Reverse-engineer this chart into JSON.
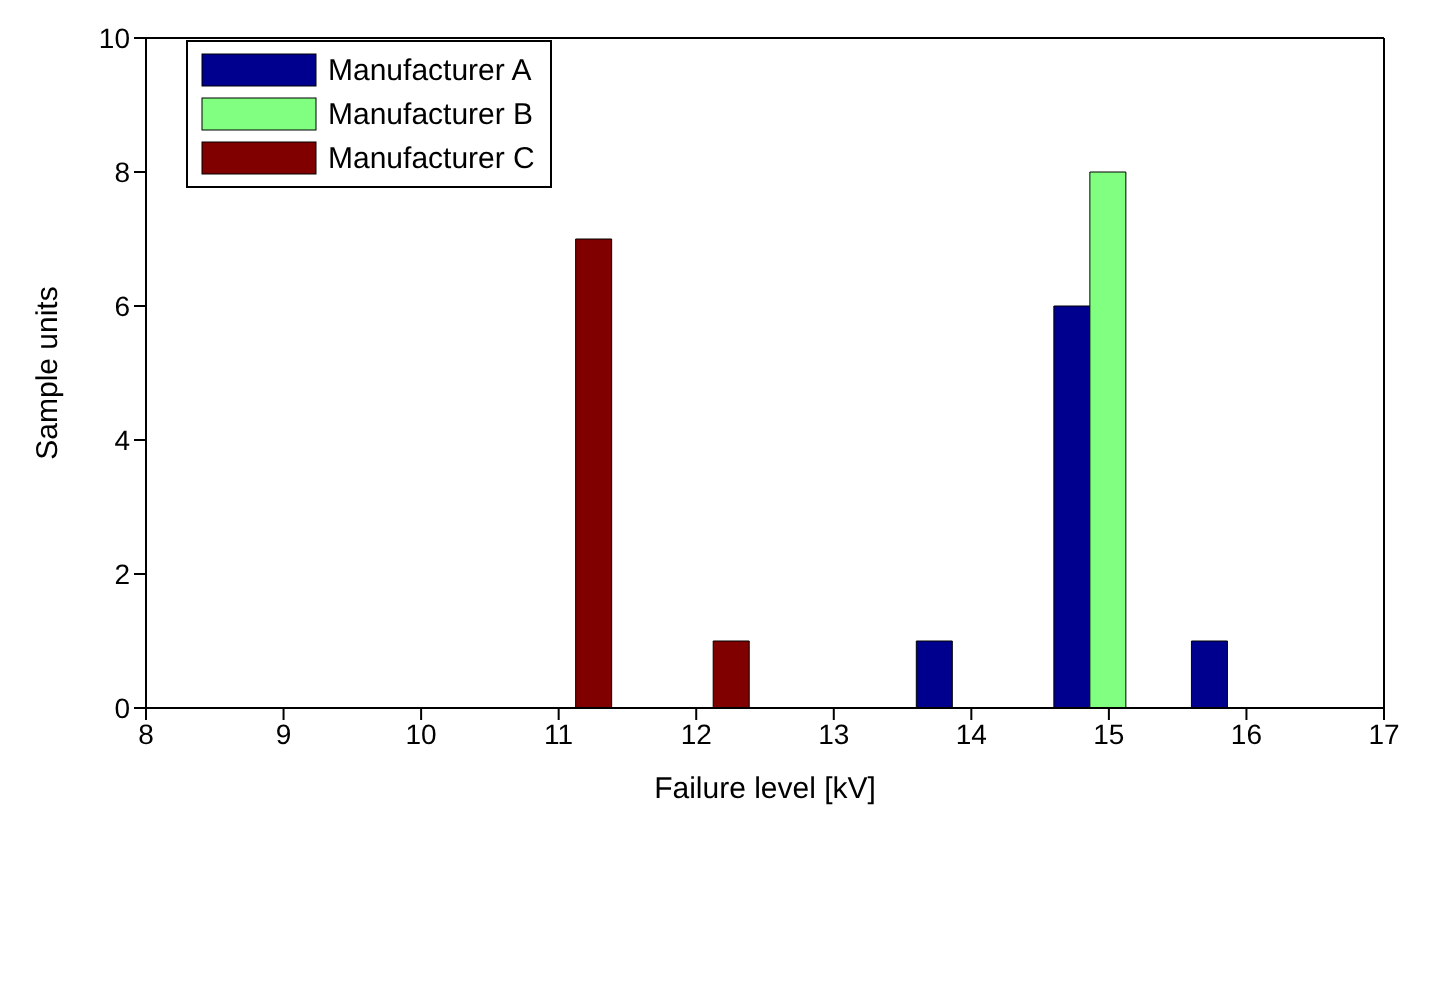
{
  "chart_data": {
    "type": "bar",
    "xlabel": "Failure level [kV]",
    "ylabel": "Sample units",
    "x": [
      9,
      10,
      11,
      12,
      13,
      14,
      15,
      16
    ],
    "series": [
      {
        "name": "Manufacturer A",
        "color": "#00008f",
        "values": [
          0,
          0,
          0,
          0,
          0,
          1,
          6,
          1
        ]
      },
      {
        "name": "Manufacturer B",
        "color": "#80ff80",
        "values": [
          0,
          0,
          0,
          0,
          0,
          0,
          8,
          0
        ]
      },
      {
        "name": "Manufacturer C",
        "color": "#800000",
        "values": [
          0,
          0,
          7,
          1,
          0,
          0,
          0,
          0
        ]
      }
    ],
    "xlim": [
      8,
      17
    ],
    "xticks": [
      8,
      9,
      10,
      11,
      12,
      13,
      14,
      15,
      16,
      17
    ],
    "ylim": [
      0,
      10
    ],
    "yticks": [
      0,
      2,
      4,
      6,
      8,
      10
    ],
    "legend": "top left"
  }
}
